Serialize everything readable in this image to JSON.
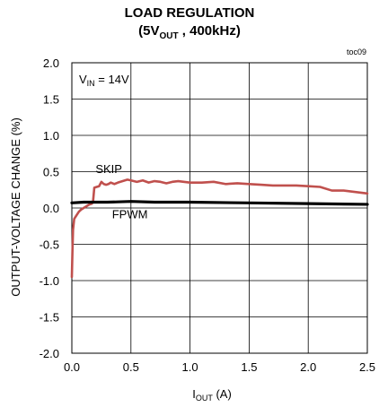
{
  "chart_data": {
    "type": "line",
    "title_line1": "LOAD REGULATION",
    "title_line2": {
      "prefix": "(5V",
      "sub": "OUT",
      "suffix": " , 400kHz)"
    },
    "figure_id": "toc09",
    "condition": {
      "prefix": "V",
      "sub": "IN",
      "suffix": " = 14V"
    },
    "xlabel": {
      "prefix": "I",
      "sub": "OUT",
      "suffix": " (A)"
    },
    "ylabel": "OUTPUT-VOLTAGE  CHANGE (%)",
    "xlim": [
      0,
      2.5
    ],
    "ylim": [
      -2.0,
      2.0
    ],
    "x_ticks": [
      "0.0",
      "0.5",
      "1.0",
      "1.5",
      "2.0",
      "2.5"
    ],
    "y_ticks": [
      "2.0",
      "1.5",
      "1.0",
      "0.5",
      "0.0",
      "-0.5",
      "-1.0",
      "-1.5",
      "-2.0"
    ],
    "grid": true,
    "series": [
      {
        "name": "SKIP",
        "color": "#c0504d",
        "points": [
          [
            0.0,
            -0.95
          ],
          [
            0.005,
            -0.6
          ],
          [
            0.01,
            -0.3
          ],
          [
            0.02,
            -0.15
          ],
          [
            0.04,
            -0.1
          ],
          [
            0.06,
            -0.05
          ],
          [
            0.08,
            -0.02
          ],
          [
            0.1,
            0.0
          ],
          [
            0.12,
            0.02
          ],
          [
            0.15,
            0.05
          ],
          [
            0.17,
            0.06
          ],
          [
            0.18,
            0.1
          ],
          [
            0.19,
            0.28
          ],
          [
            0.21,
            0.29
          ],
          [
            0.23,
            0.3
          ],
          [
            0.25,
            0.36
          ],
          [
            0.27,
            0.33
          ],
          [
            0.29,
            0.32
          ],
          [
            0.31,
            0.33
          ],
          [
            0.33,
            0.35
          ],
          [
            0.36,
            0.33
          ],
          [
            0.39,
            0.35
          ],
          [
            0.43,
            0.37
          ],
          [
            0.47,
            0.39
          ],
          [
            0.5,
            0.38
          ],
          [
            0.55,
            0.36
          ],
          [
            0.6,
            0.38
          ],
          [
            0.65,
            0.35
          ],
          [
            0.7,
            0.37
          ],
          [
            0.75,
            0.36
          ],
          [
            0.8,
            0.34
          ],
          [
            0.85,
            0.36
          ],
          [
            0.9,
            0.37
          ],
          [
            1.0,
            0.35
          ],
          [
            1.1,
            0.35
          ],
          [
            1.2,
            0.36
          ],
          [
            1.3,
            0.33
          ],
          [
            1.4,
            0.34
          ],
          [
            1.5,
            0.33
          ],
          [
            1.6,
            0.32
          ],
          [
            1.7,
            0.31
          ],
          [
            1.8,
            0.31
          ],
          [
            1.9,
            0.31
          ],
          [
            2.0,
            0.3
          ],
          [
            2.1,
            0.29
          ],
          [
            2.2,
            0.24
          ],
          [
            2.3,
            0.24
          ],
          [
            2.4,
            0.22
          ],
          [
            2.5,
            0.2
          ]
        ]
      },
      {
        "name": "FPWM",
        "color": "#000000",
        "points": [
          [
            0.0,
            0.07
          ],
          [
            0.1,
            0.08
          ],
          [
            0.2,
            0.08
          ],
          [
            0.3,
            0.08
          ],
          [
            0.5,
            0.09
          ],
          [
            0.7,
            0.08
          ],
          [
            1.0,
            0.08
          ],
          [
            1.5,
            0.07
          ],
          [
            2.0,
            0.06
          ],
          [
            2.5,
            0.05
          ]
        ]
      }
    ],
    "series_labels": [
      {
        "text": "SKIP",
        "x": 0.2,
        "y": 0.48
      },
      {
        "text": "FPWM",
        "x": 0.34,
        "y": -0.14
      }
    ]
  }
}
